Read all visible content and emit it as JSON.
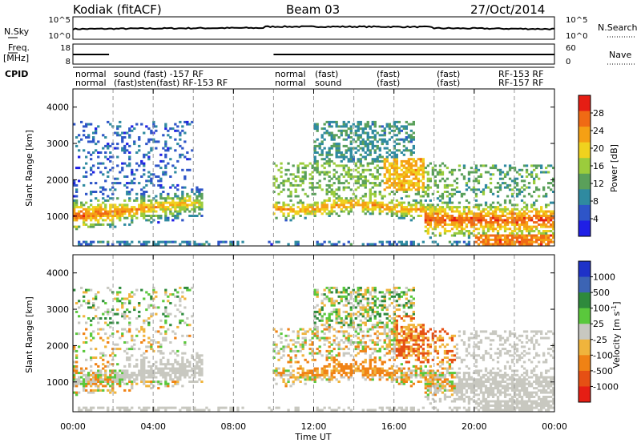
{
  "header": {
    "station": "Kodiak (fitACF)",
    "beam": "Beam 03",
    "date": "27/Oct/2014"
  },
  "strip": {
    "nsky_label": "N.Sky",
    "nsearch_label": "N.Search",
    "nsky_ticks": [
      "10^5",
      "10^0"
    ],
    "nsearch_ticks": [
      "10^5",
      "10^0"
    ],
    "freq_label_1": "Freq.",
    "freq_label_2": "[MHz]",
    "freq_ticks": [
      "18",
      "8"
    ],
    "nave_label": "Nave",
    "nave_ticks": [
      "60",
      "0"
    ],
    "cpid_label": "CPID",
    "cpid_row1": [
      "normal",
      "sound (fast) -157 RF",
      "normal",
      "(fast)",
      "(fast)",
      "(fast)",
      "RF-153 RF"
    ],
    "cpid_row2": [
      "normal",
      "(fast)sten(fast) RF-153 RF",
      "normal",
      "sound",
      "(fast)",
      "(fast)",
      "RF-157 RF"
    ]
  },
  "chart_data": [
    {
      "type": "heatmap",
      "title": "",
      "xlabel": "Time UT",
      "ylabel": "Slant Range [km]",
      "xlim": [
        "00:00",
        "24:00"
      ],
      "ylim": [
        180,
        4500
      ],
      "x_ticks": [
        "00:00",
        "04:00",
        "08:00",
        "12:00",
        "16:00",
        "20:00",
        "00:00"
      ],
      "y_ticks": [
        1000,
        2000,
        3000,
        4000
      ],
      "colorbar": {
        "label": "Power [dB]",
        "ticks": [
          4,
          8,
          12,
          16,
          20,
          24,
          28
        ],
        "range": [
          0,
          32
        ],
        "colors": [
          "#1f1fe6",
          "#2e55c8",
          "#2f8aa0",
          "#5aa05a",
          "#9bcc3c",
          "#f0d21e",
          "#f5a014",
          "#f06a14",
          "#e61e14"
        ]
      },
      "data_gap_hours": [
        8.5,
        10.0
      ]
    },
    {
      "type": "heatmap",
      "title": "",
      "xlabel": "Time UT",
      "ylabel": "Slant Range [km]",
      "xlim": [
        "00:00",
        "24:00"
      ],
      "ylim": [
        180,
        4500
      ],
      "x_ticks": [
        "00:00",
        "04:00",
        "08:00",
        "12:00",
        "16:00",
        "20:00",
        "00:00"
      ],
      "y_ticks": [
        1000,
        2000,
        3000,
        4000
      ],
      "colorbar": {
        "label": "Velocity [m s^-1]",
        "ticks": [
          "1000",
          "500",
          "100",
          "25",
          "-25",
          "-100",
          "-500",
          "-1000"
        ],
        "colors": [
          "#1e32c8",
          "#3c64b4",
          "#2e8a3c",
          "#5ac83c",
          "#c8c8c0",
          "#f0b43c",
          "#f08214",
          "#e65014",
          "#e61e14"
        ]
      }
    }
  ]
}
